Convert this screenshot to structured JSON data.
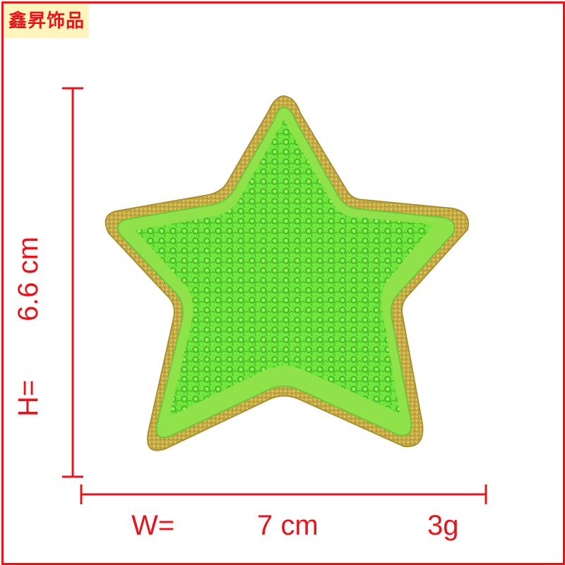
{
  "brand": {
    "text": "鑫昇饰品"
  },
  "dimensions": {
    "height_label": "H=",
    "height_value": "6.6 cm",
    "width_label": "W=",
    "width_value": "7 cm",
    "weight": "3g"
  },
  "colors": {
    "accent": "#e8141b",
    "brand_bg": "#fff5bd",
    "star_border": "#c9b14a",
    "star_edge": "#8fe24a",
    "star_fill": "#6ee63a",
    "sequin": "#3fae1e"
  }
}
